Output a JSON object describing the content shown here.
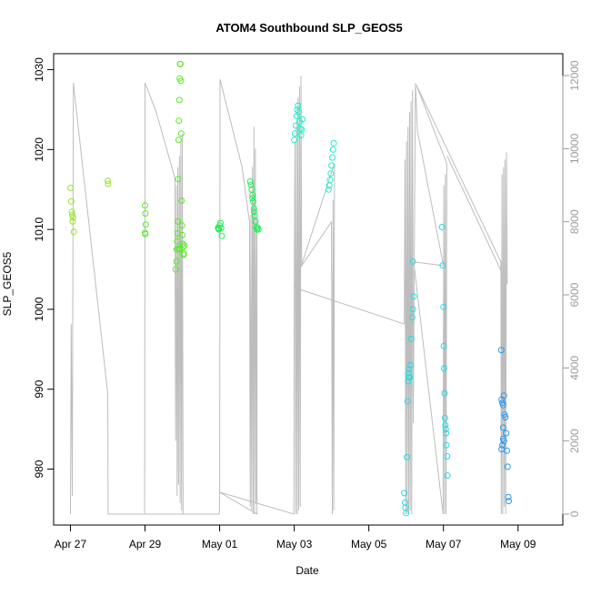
{
  "chart_data": {
    "type": "scatter",
    "title": "ATOM4 Southbound SLP_GEOS5",
    "xlabel": "Date",
    "ylabel": "SLP_GEOS5",
    "x_ticks": [
      "Apr 27",
      "Apr 29",
      "May 01",
      "May 03",
      "May 05",
      "May 07",
      "May 09"
    ],
    "x_tick_days": [
      0,
      2,
      4,
      6,
      8,
      10,
      12
    ],
    "xlim_days": [
      -0.45,
      13.2
    ],
    "ylim": [
      973,
      1032
    ],
    "y_ticks": [
      980,
      990,
      1000,
      1010,
      1020,
      1030
    ],
    "y2_ticks": [
      0,
      2000,
      4000,
      6000,
      8000,
      10000,
      12000
    ],
    "y2lim": [
      -300,
      12600
    ],
    "colors": {
      "g1": "#9be22e",
      "g2": "#5be82a",
      "g3": "#22ee55",
      "c1": "#22eecc",
      "c2": "#22dde8",
      "b1": "#2299ee"
    },
    "points": [
      [
        0.0,
        1015.2,
        "g1"
      ],
      [
        0.02,
        1013.5,
        "g1"
      ],
      [
        0.04,
        1012.2,
        "g1"
      ],
      [
        0.05,
        1011.8,
        "g1"
      ],
      [
        0.06,
        1011.0,
        "g1"
      ],
      [
        0.07,
        1011.5,
        "g1"
      ],
      [
        0.09,
        1009.7,
        "g1"
      ],
      [
        1.0,
        1016.1,
        "g1"
      ],
      [
        1.01,
        1015.7,
        "g1"
      ],
      [
        2.0,
        1013.0,
        "g2"
      ],
      [
        2.01,
        1012.0,
        "g2"
      ],
      [
        2.02,
        1010.6,
        "g2"
      ],
      [
        2.0,
        1009.6,
        "g2"
      ],
      [
        2.01,
        1009.4,
        "g2"
      ],
      [
        2.82,
        1005.0,
        "g2"
      ],
      [
        2.84,
        1006.0,
        "g2"
      ],
      [
        2.85,
        1007.5,
        "g2"
      ],
      [
        2.86,
        1008.5,
        "g2"
      ],
      [
        2.87,
        1009.5,
        "g2"
      ],
      [
        2.88,
        1011.0,
        "g2"
      ],
      [
        2.89,
        1016.3,
        "g2"
      ],
      [
        2.9,
        1021.2,
        "g2"
      ],
      [
        2.91,
        1023.6,
        "g2"
      ],
      [
        2.92,
        1026.2,
        "g2"
      ],
      [
        2.93,
        1028.9,
        "g2"
      ],
      [
        2.94,
        1030.7,
        "g2"
      ],
      [
        2.95,
        1030.7,
        "g2"
      ],
      [
        2.96,
        1028.6,
        "g2"
      ],
      [
        2.97,
        1022.0,
        "g2"
      ],
      [
        2.98,
        1013.6,
        "g2"
      ],
      [
        2.99,
        1010.5,
        "g2"
      ],
      [
        3.0,
        1009.3,
        "g2"
      ],
      [
        3.01,
        1008.2,
        "g2"
      ],
      [
        3.02,
        1007.8,
        "g2"
      ],
      [
        3.03,
        1006.8,
        "g2"
      ],
      [
        3.04,
        1007.0,
        "g2"
      ],
      [
        3.05,
        1008.0,
        "g2"
      ],
      [
        2.9,
        1007.6,
        "g2"
      ],
      [
        2.92,
        1007.5,
        "g2"
      ],
      [
        3.96,
        1010.2,
        "g3"
      ],
      [
        3.98,
        1010.0,
        "g3"
      ],
      [
        4.0,
        1010.5,
        "g3"
      ],
      [
        4.02,
        1010.8,
        "g3"
      ],
      [
        4.04,
        1010.2,
        "g3"
      ],
      [
        4.06,
        1009.2,
        "g3"
      ],
      [
        3.97,
        1010.1,
        "g3"
      ],
      [
        4.82,
        1016.0,
        "g3"
      ],
      [
        4.84,
        1015.6,
        "g3"
      ],
      [
        4.86,
        1015.0,
        "g3"
      ],
      [
        4.88,
        1014.3,
        "g3"
      ],
      [
        4.9,
        1013.5,
        "g3"
      ],
      [
        4.92,
        1012.6,
        "g3"
      ],
      [
        4.94,
        1011.7,
        "g3"
      ],
      [
        4.96,
        1011.0,
        "g3"
      ],
      [
        4.98,
        1010.3,
        "g3"
      ],
      [
        5.0,
        1010.0,
        "g3"
      ],
      [
        5.02,
        1010.2,
        "g3"
      ],
      [
        5.04,
        1010.0,
        "g3"
      ],
      [
        4.88,
        1013.9,
        "g3"
      ],
      [
        4.92,
        1012.2,
        "g3"
      ],
      [
        6.0,
        1021.2,
        "c1"
      ],
      [
        6.02,
        1022.0,
        "c1"
      ],
      [
        6.04,
        1023.0,
        "c1"
      ],
      [
        6.06,
        1024.2,
        "c1"
      ],
      [
        6.08,
        1025.0,
        "c1"
      ],
      [
        6.1,
        1025.5,
        "c1"
      ],
      [
        6.12,
        1024.7,
        "c1"
      ],
      [
        6.14,
        1023.5,
        "c1"
      ],
      [
        6.16,
        1022.6,
        "c1"
      ],
      [
        6.18,
        1021.8,
        "c1"
      ],
      [
        6.2,
        1022.5,
        "c1"
      ],
      [
        6.22,
        1023.8,
        "c1"
      ],
      [
        6.92,
        1015.0,
        "c1"
      ],
      [
        6.94,
        1015.5,
        "c1"
      ],
      [
        6.96,
        1016.2,
        "c1"
      ],
      [
        6.98,
        1017.0,
        "c1"
      ],
      [
        7.0,
        1018.0,
        "c1"
      ],
      [
        7.02,
        1019.0,
        "c1"
      ],
      [
        7.04,
        1020.0,
        "c1"
      ],
      [
        7.06,
        1020.8,
        "c1"
      ],
      [
        8.95,
        977.0,
        "c2"
      ],
      [
        8.97,
        975.8,
        "c2"
      ],
      [
        8.98,
        975.2,
        "c2"
      ],
      [
        9.0,
        974.5,
        "c2"
      ],
      [
        9.02,
        981.5,
        "c2"
      ],
      [
        9.04,
        988.5,
        "c2"
      ],
      [
        9.05,
        991.0,
        "c2"
      ],
      [
        9.06,
        992.0,
        "c2"
      ],
      [
        9.07,
        991.5,
        "c2"
      ],
      [
        9.08,
        992.5,
        "c2"
      ],
      [
        9.1,
        991.5,
        "c2"
      ],
      [
        9.12,
        993.0,
        "c2"
      ],
      [
        9.14,
        996.3,
        "c2"
      ],
      [
        9.16,
        999.0,
        "c2"
      ],
      [
        9.18,
        1000.0,
        "c2"
      ],
      [
        9.2,
        1001.6,
        "c2"
      ],
      [
        9.18,
        1006.0,
        "c2"
      ],
      [
        9.96,
        1010.3,
        "c2"
      ],
      [
        9.98,
        1005.5,
        "c2"
      ],
      [
        10.0,
        1000.3,
        "c2"
      ],
      [
        10.01,
        995.4,
        "c2"
      ],
      [
        10.02,
        992.6,
        "c2"
      ],
      [
        10.03,
        989.5,
        "c2"
      ],
      [
        10.04,
        986.4,
        "c2"
      ],
      [
        10.05,
        985.5,
        "c2"
      ],
      [
        10.06,
        985.0,
        "c2"
      ],
      [
        10.07,
        984.5,
        "c2"
      ],
      [
        10.08,
        983.0,
        "c2"
      ],
      [
        10.1,
        981.6,
        "c2"
      ],
      [
        10.11,
        979.2,
        "c2"
      ],
      [
        11.55,
        994.9,
        "b1"
      ],
      [
        11.56,
        988.7,
        "b1"
      ],
      [
        11.58,
        988.3,
        "b1"
      ],
      [
        11.6,
        988.0,
        "b1"
      ],
      [
        11.62,
        989.2,
        "b1"
      ],
      [
        11.64,
        986.8,
        "b1"
      ],
      [
        11.66,
        986.5,
        "b1"
      ],
      [
        11.68,
        984.5,
        "b1"
      ],
      [
        11.6,
        985.2,
        "b1"
      ],
      [
        11.62,
        983.5,
        "b1"
      ],
      [
        11.58,
        983.0,
        "b1"
      ],
      [
        11.56,
        982.5,
        "b1"
      ],
      [
        11.7,
        982.3,
        "b1"
      ],
      [
        11.72,
        980.3,
        "b1"
      ],
      [
        11.74,
        976.5,
        "b1"
      ],
      [
        11.75,
        976.0,
        "b1"
      ],
      [
        11.6,
        983.8,
        "b1"
      ]
    ],
    "altitude_path": [
      [
        0.0,
        0
      ],
      [
        0.02,
        5200
      ],
      [
        0.05,
        500
      ],
      [
        0.08,
        11800
      ],
      [
        1.0,
        3300
      ],
      [
        1.01,
        0
      ],
      [
        1.99,
        0
      ],
      [
        2.0,
        11800
      ],
      [
        2.3,
        11000
      ],
      [
        2.8,
        9200
      ],
      [
        2.82,
        2000
      ],
      [
        2.84,
        9000
      ],
      [
        2.86,
        500
      ],
      [
        2.88,
        9500
      ],
      [
        2.9,
        800
      ],
      [
        2.92,
        9800
      ],
      [
        2.94,
        300
      ],
      [
        2.96,
        10200
      ],
      [
        2.98,
        100
      ],
      [
        3.0,
        10400
      ],
      [
        3.02,
        0
      ],
      [
        1.99,
        0
      ],
      [
        3.99,
        0
      ],
      [
        4.0,
        600
      ],
      [
        4.01,
        11900
      ],
      [
        4.6,
        9500
      ],
      [
        4.8,
        8000
      ],
      [
        4.82,
        200
      ],
      [
        4.84,
        8200
      ],
      [
        4.86,
        100
      ],
      [
        4.88,
        9500
      ],
      [
        4.9,
        0
      ],
      [
        4.92,
        10600
      ],
      [
        4.94,
        0
      ],
      [
        4.96,
        10000
      ],
      [
        4.98,
        300
      ],
      [
        5.0,
        8100
      ],
      [
        5.0,
        0
      ],
      [
        4.0,
        600
      ],
      [
        5.99,
        0
      ],
      [
        6.0,
        6200
      ],
      [
        6.02,
        10200
      ],
      [
        6.04,
        0
      ],
      [
        6.06,
        10700
      ],
      [
        6.08,
        0
      ],
      [
        6.1,
        11400
      ],
      [
        6.12,
        100
      ],
      [
        6.14,
        11700
      ],
      [
        6.16,
        200
      ],
      [
        6.18,
        12000
      ],
      [
        6.2,
        6800
      ],
      [
        7.0,
        8000
      ],
      [
        7.02,
        0
      ],
      [
        7.04,
        8600
      ],
      [
        7.06,
        100
      ],
      [
        7.08,
        9600
      ],
      [
        6.0,
        6200
      ],
      [
        8.95,
        5200
      ],
      [
        8.97,
        9700
      ],
      [
        8.99,
        0
      ],
      [
        9.01,
        10200
      ],
      [
        9.03,
        0
      ],
      [
        9.05,
        10600
      ],
      [
        9.07,
        0
      ],
      [
        9.09,
        11000
      ],
      [
        9.11,
        100
      ],
      [
        9.13,
        11300
      ],
      [
        9.15,
        0
      ],
      [
        9.17,
        11600
      ],
      [
        9.19,
        2500
      ],
      [
        9.25,
        11800
      ],
      [
        9.3,
        10500
      ],
      [
        10.0,
        6800
      ],
      [
        9.2,
        6900
      ],
      [
        9.25,
        6500
      ],
      [
        9.99,
        0
      ],
      [
        10.01,
        9000
      ],
      [
        10.03,
        0
      ],
      [
        10.05,
        9300
      ],
      [
        10.07,
        0
      ],
      [
        10.09,
        9600
      ],
      [
        9.27,
        11750
      ],
      [
        11.54,
        6900
      ],
      [
        11.55,
        0
      ],
      [
        11.57,
        9300
      ],
      [
        11.59,
        0
      ],
      [
        11.61,
        9500
      ],
      [
        11.63,
        200
      ],
      [
        11.65,
        9700
      ],
      [
        11.67,
        0
      ],
      [
        11.69,
        9900
      ],
      [
        11.71,
        6300
      ],
      [
        10.1,
        9800
      ]
    ]
  }
}
